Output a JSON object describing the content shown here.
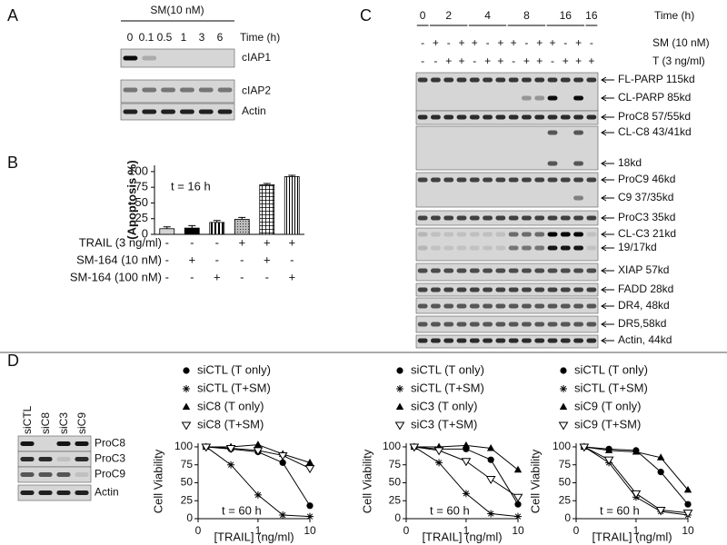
{
  "panel_labels": [
    "A",
    "B",
    "C",
    "D"
  ],
  "panel_a": {
    "header": "SM(10 nM)",
    "lanes": [
      "0",
      "0.1",
      "0.5",
      "1",
      "3",
      "6"
    ],
    "lane_title": "Time (h)",
    "rows": [
      "cIAP1",
      "cIAP2",
      "Actin"
    ]
  },
  "panel_c": {
    "times": [
      "0",
      "2",
      "4",
      "8",
      "16",
      "16"
    ],
    "time_title": "Time (h)",
    "conditions": [
      {
        "label": "SM (10 nM)",
        "signs": [
          "-",
          "+",
          "-",
          "+",
          "+",
          "-",
          "+",
          "+",
          "-",
          "+",
          "+",
          "-",
          "+",
          "-"
        ]
      },
      {
        "label": "T (3 ng/ml)",
        "signs": [
          "-",
          "-",
          "+",
          "+",
          "-",
          "+",
          "+",
          "-",
          "+",
          "+",
          "-",
          "+",
          "+",
          "+"
        ]
      }
    ],
    "bands": [
      "FL-PARP 115kd",
      "CL-PARP 85kd",
      "ProC8 57/55kd",
      "CL-C8 43/41kd",
      "18kd",
      "ProC9 46kd",
      "C9 37/35kd",
      "ProC3 35kd",
      "CL-C3 21kd",
      "19/17kd",
      "XIAP 57kd",
      "FADD 28kd",
      "DR4, 48kd",
      "DR5,58kd",
      "Actin, 44kd"
    ]
  },
  "panel_d": {
    "lanes": [
      "siCTL",
      "siC8",
      "siC3",
      "siC9"
    ],
    "rows": [
      "ProC8",
      "ProC3",
      "ProC9",
      "Actin"
    ]
  },
  "chart_data": [
    {
      "type": "bar",
      "y_label": "(Apoptosis %)",
      "annotation": "t = 16 h",
      "values": [
        9,
        10,
        19,
        24,
        79,
        92
      ],
      "errors": [
        3,
        4,
        3,
        3,
        2,
        2
      ],
      "color": "#000000",
      "ylim": [
        0,
        110
      ],
      "yticks": [
        0,
        25,
        50,
        75,
        100
      ],
      "conditions": [
        {
          "label": "TRAIL (3 ng/ml)",
          "signs": [
            "-",
            "-",
            "-",
            "+",
            "+",
            "+"
          ]
        },
        {
          "label": "SM-164 (10 nM)",
          "signs": [
            "-",
            "+",
            "-",
            "-",
            "+",
            "-"
          ]
        },
        {
          "label": "SM-164 (100 nM)",
          "signs": [
            "-",
            "-",
            "+",
            "-",
            "-",
            "+"
          ]
        }
      ]
    },
    {
      "type": "line",
      "x_label": "[TRAIL] (ng/ml)",
      "y_label": "Cell Viability",
      "annotation": "t = 60 h",
      "xlog": true,
      "x": [
        0.1,
        0.3,
        1,
        3,
        10
      ],
      "xlim": [
        0.07,
        10
      ],
      "xticks": [
        {
          "value": 0.07,
          "label": "0"
        },
        1,
        10
      ],
      "ylim": [
        0,
        105
      ],
      "yticks": [
        0,
        25,
        50,
        75,
        100
      ],
      "series": [
        {
          "name": "siCTL (T only)",
          "color": "#000000",
          "marker": "circle",
          "values": [
            100,
            97,
            93,
            78,
            18
          ]
        },
        {
          "name": "siCTL (T+SM)",
          "color": "#000000",
          "marker": "asterisk",
          "values": [
            100,
            75,
            33,
            5,
            3
          ]
        },
        {
          "name": "siC8 (T only)",
          "color": "#000000",
          "marker": "triangle",
          "values": [
            100,
            100,
            103,
            90,
            78
          ]
        },
        {
          "name": "siC8 (T+SM)",
          "color": "#000000",
          "marker": "open-down-triangle",
          "values": [
            100,
            98,
            95,
            88,
            70
          ]
        }
      ]
    },
    {
      "type": "line",
      "x_label": "[TRAIL] (ng/ml)",
      "y_label": "Cell Viability",
      "annotation": "t = 60 h",
      "xlog": true,
      "x": [
        0.1,
        0.3,
        1,
        3,
        10
      ],
      "xlim": [
        0.07,
        10
      ],
      "xticks": [
        {
          "value": 0.07,
          "label": "0"
        },
        1,
        10
      ],
      "ylim": [
        0,
        105
      ],
      "yticks": [
        0,
        25,
        50,
        75,
        100
      ],
      "series": [
        {
          "name": "siCTL (T only)",
          "color": "#000000",
          "marker": "circle",
          "values": [
            100,
            97,
            97,
            82,
            20
          ]
        },
        {
          "name": "siCTL (T+SM)",
          "color": "#000000",
          "marker": "asterisk",
          "values": [
            100,
            78,
            35,
            7,
            3
          ]
        },
        {
          "name": "siC3 (T only)",
          "color": "#000000",
          "marker": "triangle",
          "values": [
            100,
            100,
            102,
            98,
            68
          ]
        },
        {
          "name": "siC3 (T+SM)",
          "color": "#000000",
          "marker": "open-down-triangle",
          "values": [
            100,
            95,
            80,
            55,
            30
          ]
        }
      ]
    },
    {
      "type": "line",
      "x_label": "[TRAIL] (ng/ml)",
      "y_label": "Cell Viability",
      "annotation": "t = 60 h",
      "xlog": true,
      "x": [
        0.1,
        0.3,
        1,
        3,
        10
      ],
      "xlim": [
        0.07,
        10
      ],
      "xticks": [
        {
          "value": 0.07,
          "label": "0"
        },
        1,
        10
      ],
      "ylim": [
        0,
        105
      ],
      "yticks": [
        0,
        25,
        50,
        75,
        100
      ],
      "series": [
        {
          "name": "siCTL (T only)",
          "color": "#000000",
          "marker": "circle",
          "values": [
            100,
            97,
            95,
            65,
            20
          ]
        },
        {
          "name": "siCTL (T+SM)",
          "color": "#000000",
          "marker": "asterisk",
          "values": [
            100,
            78,
            30,
            10,
            5
          ]
        },
        {
          "name": "siC9 (T only)",
          "color": "#000000",
          "marker": "triangle",
          "values": [
            100,
            95,
            93,
            85,
            40
          ]
        },
        {
          "name": "siC9 (T+SM)",
          "color": "#000000",
          "marker": "open-down-triangle",
          "values": [
            100,
            82,
            35,
            12,
            8
          ]
        }
      ]
    }
  ]
}
